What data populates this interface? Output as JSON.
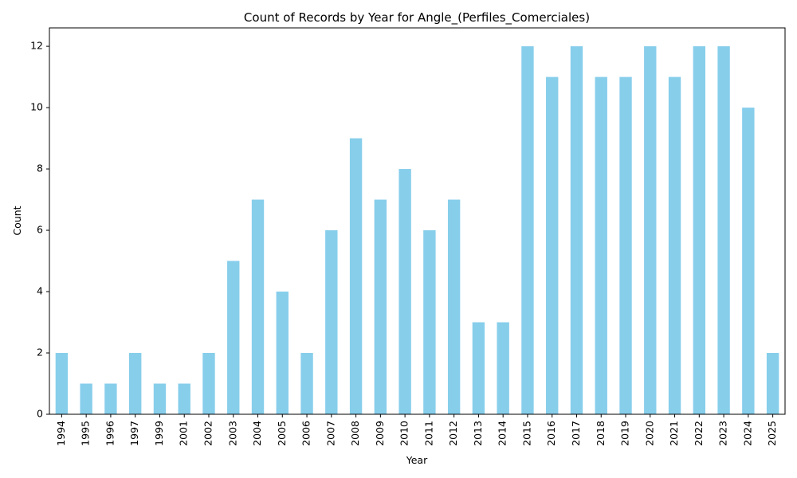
{
  "chart_data": {
    "type": "bar",
    "title": "Count of Records by Year for Angle_(Perfiles_Comerciales)",
    "xlabel": "Year",
    "ylabel": "Count",
    "categories": [
      "1994",
      "1995",
      "1996",
      "1997",
      "1999",
      "2001",
      "2002",
      "2003",
      "2004",
      "2005",
      "2006",
      "2007",
      "2008",
      "2009",
      "2010",
      "2011",
      "2012",
      "2013",
      "2014",
      "2015",
      "2016",
      "2017",
      "2018",
      "2019",
      "2020",
      "2021",
      "2022",
      "2023",
      "2024",
      "2025"
    ],
    "values": [
      2,
      1,
      1,
      2,
      1,
      1,
      2,
      5,
      7,
      4,
      2,
      6,
      9,
      7,
      8,
      6,
      7,
      3,
      3,
      12,
      11,
      12,
      11,
      11,
      12,
      11,
      12,
      12,
      10,
      2
    ],
    "ylim": [
      0,
      12.6
    ],
    "yticks": [
      0,
      2,
      4,
      6,
      8,
      10,
      12
    ],
    "bar_color": "#87CEEB",
    "grid": false,
    "legend": "none"
  }
}
